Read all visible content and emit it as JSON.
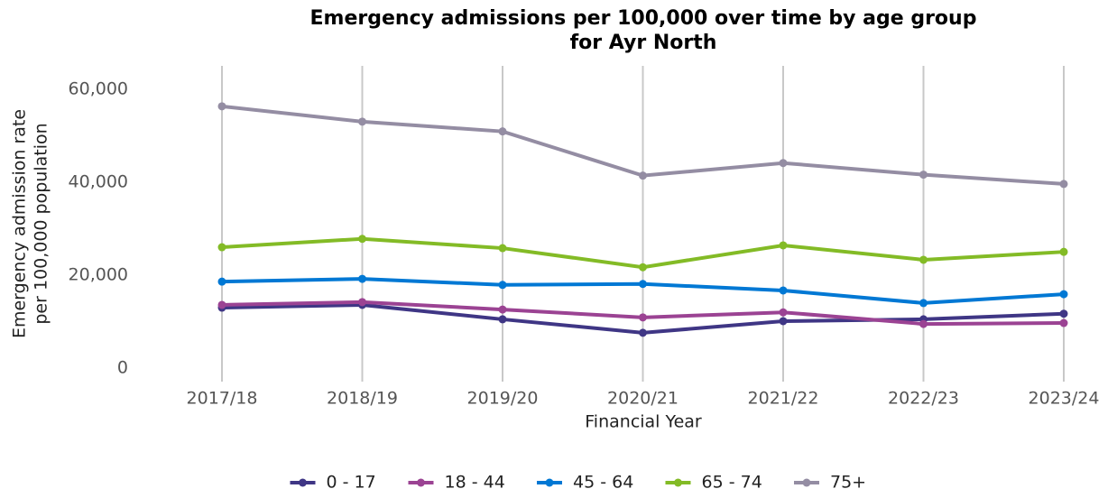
{
  "chart_data": {
    "type": "line",
    "title": [
      "Emergency admissions per 100,000 over time by age group",
      "for Ayr North"
    ],
    "x_label": "Financial Year",
    "y_label": [
      "Emergency admission rate",
      "per 100,000 population"
    ],
    "categories": [
      "2017/18",
      "2018/19",
      "2019/20",
      "2020/21",
      "2021/22",
      "2022/23",
      "2023/24"
    ],
    "series": [
      {
        "name": "0 - 17",
        "color": "#3f3685",
        "values": [
          13000,
          13600,
          10500,
          7600,
          10100,
          10500,
          11700
        ]
      },
      {
        "name": "18 - 44",
        "color": "#9b4393",
        "values": [
          13600,
          14200,
          12600,
          10900,
          12000,
          9500,
          9700
        ]
      },
      {
        "name": "45 - 64",
        "color": "#0078d4",
        "values": [
          18600,
          19200,
          17900,
          18100,
          16700,
          14000,
          15900
        ]
      },
      {
        "name": "65 - 74",
        "color": "#83bb26",
        "values": [
          26000,
          27800,
          25800,
          21700,
          26400,
          23300,
          25000
        ]
      },
      {
        "name": "75+",
        "color": "#948da3",
        "values": [
          56300,
          53000,
          50900,
          41400,
          44100,
          41600,
          39600
        ]
      }
    ],
    "ylim": [
      -2900,
      65000
    ],
    "yticks": [
      0,
      {
        "value": 20000,
        "label": "20,000"
      },
      {
        "value": 40000,
        "label": "40,000"
      },
      {
        "value": 60000,
        "label": "60,000"
      }
    ],
    "grid": "x",
    "legend": "bottom"
  }
}
